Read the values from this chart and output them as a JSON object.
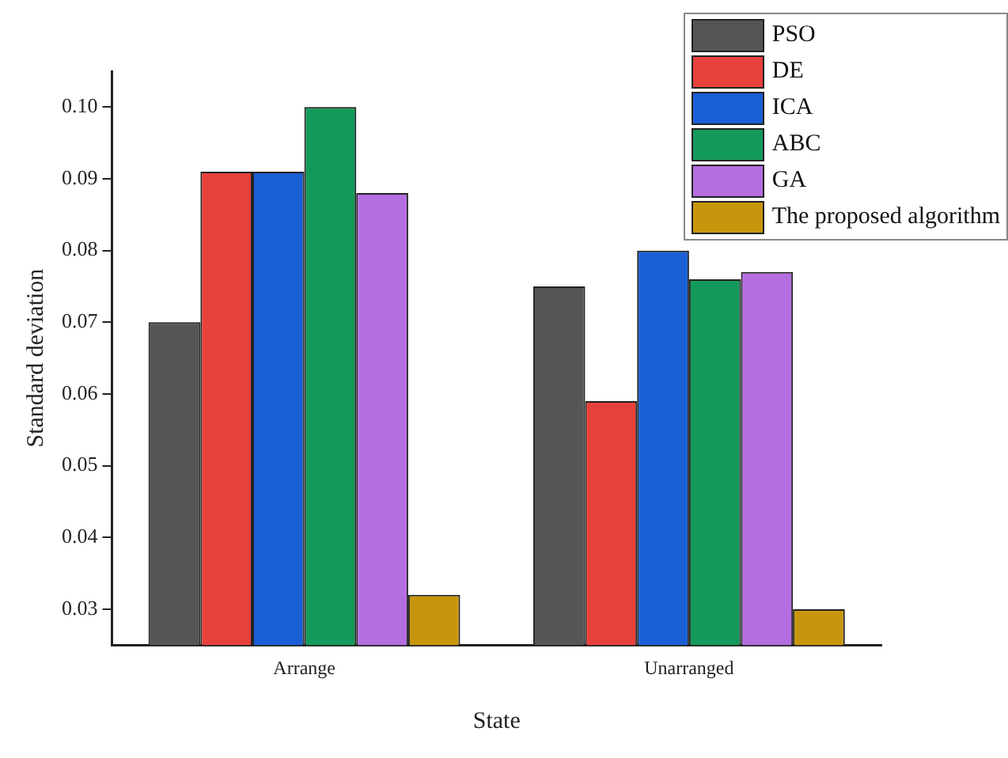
{
  "chart_data": {
    "type": "bar",
    "xlabel": "State",
    "ylabel": "Standard deviation",
    "categories": [
      "Arrange",
      "Unarranged"
    ],
    "series": [
      {
        "name": "PSO",
        "color": "#555555",
        "values": [
          0.07,
          0.075
        ]
      },
      {
        "name": "DE",
        "color": "#e8413c",
        "values": [
          0.091,
          0.059
        ]
      },
      {
        "name": "ICA",
        "color": "#1a5fd6",
        "values": [
          0.091,
          0.08
        ]
      },
      {
        "name": "ABC",
        "color": "#139a5a",
        "values": [
          0.1,
          0.076
        ]
      },
      {
        "name": "GA",
        "color": "#b36ee0",
        "values": [
          0.088,
          0.077
        ]
      },
      {
        "name": "The proposed algorithm",
        "color": "#c8960c",
        "values": [
          0.032,
          0.03
        ]
      }
    ],
    "ylim": [
      0.025,
      0.105
    ],
    "yticks": [
      0.03,
      0.04,
      0.05,
      0.06,
      0.07,
      0.08,
      0.09,
      {
        "value": 0.1,
        "label": "0.10"
      }
    ],
    "grid": false,
    "legend": "top right"
  }
}
